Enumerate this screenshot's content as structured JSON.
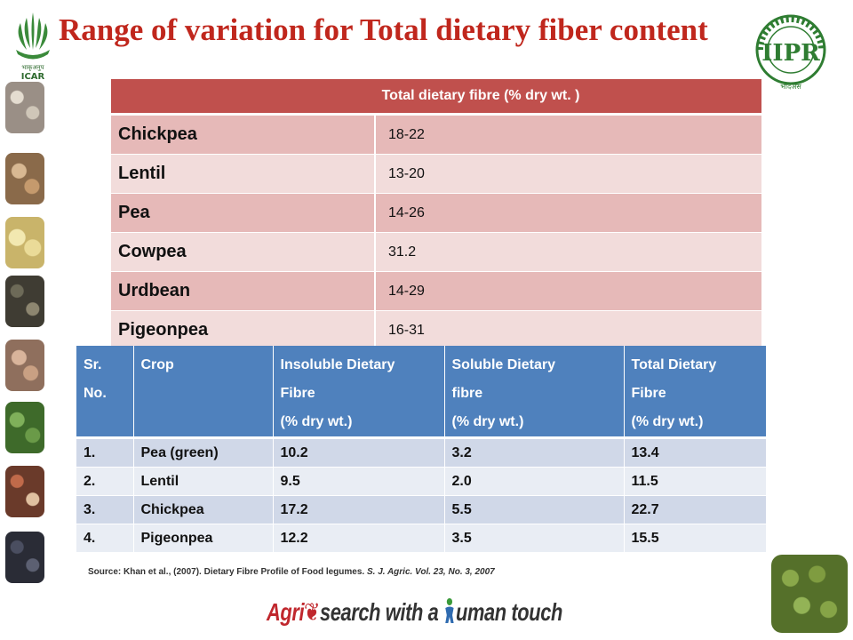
{
  "slide": {
    "title": "Range of variation for Total dietary fiber content"
  },
  "logos": {
    "left": "icar-logo",
    "right": "iipr-logo"
  },
  "table1": {
    "header": "Total dietary fibre (% dry wt. )",
    "rows": [
      {
        "crop": "Chickpea",
        "value": "18-22"
      },
      {
        "crop": "Lentil",
        "value": "13-20"
      },
      {
        "crop": "Pea",
        "value": "14-26"
      },
      {
        "crop": "Cowpea",
        "value": "31.2"
      },
      {
        "crop": "Urdbean",
        "value": "14-29"
      },
      {
        "crop": "Pigeonpea",
        "value": "16-31"
      }
    ],
    "colors": {
      "header": "#c0504d",
      "band1": "#e6b9b8",
      "band2": "#f2dcdb"
    }
  },
  "table2": {
    "headers": {
      "sr": [
        "Sr.",
        "No."
      ],
      "crop": [
        "Crop"
      ],
      "insoluble": [
        "Insoluble Dietary",
        "Fibre",
        "(% dry wt.)"
      ],
      "soluble": [
        "Soluble Dietary",
        "fibre",
        "(% dry wt.)"
      ],
      "total": [
        "Total Dietary",
        "Fibre",
        "(% dry wt.)"
      ]
    },
    "rows": [
      {
        "sr": "1.",
        "crop": "Pea (green)",
        "insoluble": "10.2",
        "soluble": "3.2",
        "total": "13.4"
      },
      {
        "sr": "2.",
        "crop": "Lentil",
        "insoluble": "9.5",
        "soluble": "2.0",
        "total": "11.5"
      },
      {
        "sr": "3.",
        "crop": "Chickpea",
        "insoluble": "17.2",
        "soluble": "5.5",
        "total": "22.7"
      },
      {
        "sr": "4.",
        "crop": "Pigeonpea",
        "insoluble": "12.2",
        "soluble": "3.5",
        "total": "15.5"
      }
    ],
    "colors": {
      "header": "#4f81bd",
      "band1": "#d0d8e8",
      "band2": "#e9edf4"
    }
  },
  "source": {
    "prefix": "Source: Khan et al., (2007). Dietary Fibre Profile of Food legumes. ",
    "journal": "S. J. Agric. Vol. 23, No. 3, 2007"
  },
  "tagline": {
    "part1": "Agri",
    "part2": "search with a ",
    "part3": "uman touch",
    "accent": "#c0272d"
  }
}
